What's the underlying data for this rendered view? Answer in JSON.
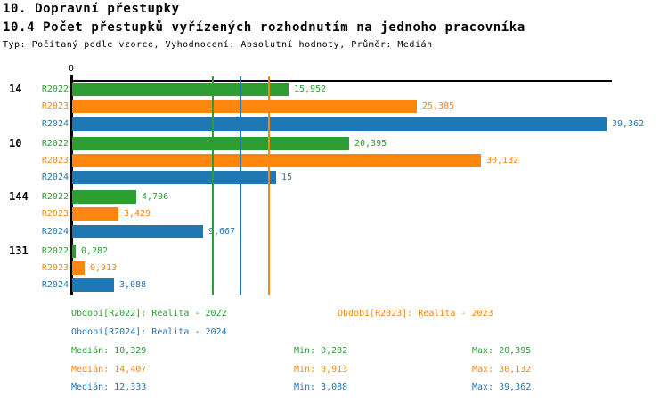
{
  "title": "10. Dopravní přestupky",
  "subtitle": "10.4 Počet přestupků vyřízených rozhodnutím na jednoho pracovníka",
  "meta": "Typ: Počítaný podle vzorce, Vyhodnocení: Absolutní hodnoty, Průměr: Medián",
  "colors": {
    "r2022": "#2e9d32",
    "r2023": "#fc860e",
    "r2024": "#1f77b4",
    "axis": "#000000",
    "background": "#ffffff"
  },
  "chart_data": {
    "type": "bar",
    "orientation": "horizontal",
    "title": "10.4 Počet přestupků vyřízených rozhodnutím na jednoho pracovníka",
    "xlabel": "",
    "ylabel": "",
    "xlim": [
      0,
      40
    ],
    "axis": {
      "zero_label": "0"
    },
    "grid": false,
    "series_names": [
      "R2022",
      "R2023",
      "R2024"
    ],
    "series_keys": [
      "r2022",
      "r2023",
      "r2024"
    ],
    "groups": [
      {
        "label": "14",
        "values": [
          15.952,
          25.385,
          39.362
        ],
        "value_labels": [
          "15,952",
          "25,385",
          "39,362"
        ]
      },
      {
        "label": "10",
        "values": [
          20.395,
          30.132,
          15.0
        ],
        "value_labels": [
          "20,395",
          "30,132",
          "15"
        ]
      },
      {
        "label": "144",
        "values": [
          4.706,
          3.429,
          9.667
        ],
        "value_labels": [
          "4,706",
          "3,429",
          "9,667"
        ]
      },
      {
        "label": "131",
        "values": [
          0.282,
          0.913,
          3.088
        ],
        "value_labels": [
          "0,282",
          "0,913",
          "3,088"
        ]
      }
    ],
    "median_lines": [
      {
        "series": "r2022",
        "value": 10.329
      },
      {
        "series": "r2024",
        "value": 12.333
      },
      {
        "series": "r2023",
        "value": 14.407
      }
    ],
    "legend_position": "bottom"
  },
  "legend": [
    {
      "series": "r2022",
      "label": "Období[R2022]: Realita - 2022"
    },
    {
      "series": "r2023",
      "label": "Období[R2023]: Realita - 2023"
    },
    {
      "series": "r2024",
      "label": "Období[R2024]: Realita - 2024"
    }
  ],
  "stats": [
    {
      "series": "r2022",
      "median": "Medián: 10,329",
      "min": "Min: 0,282",
      "max": "Max: 20,395"
    },
    {
      "series": "r2023",
      "median": "Medián: 14,407",
      "min": "Min: 0,913",
      "max": "Max: 30,132"
    },
    {
      "series": "r2024",
      "median": "Medián: 12,333",
      "min": "Min: 3,088",
      "max": "Max: 39,362"
    }
  ]
}
